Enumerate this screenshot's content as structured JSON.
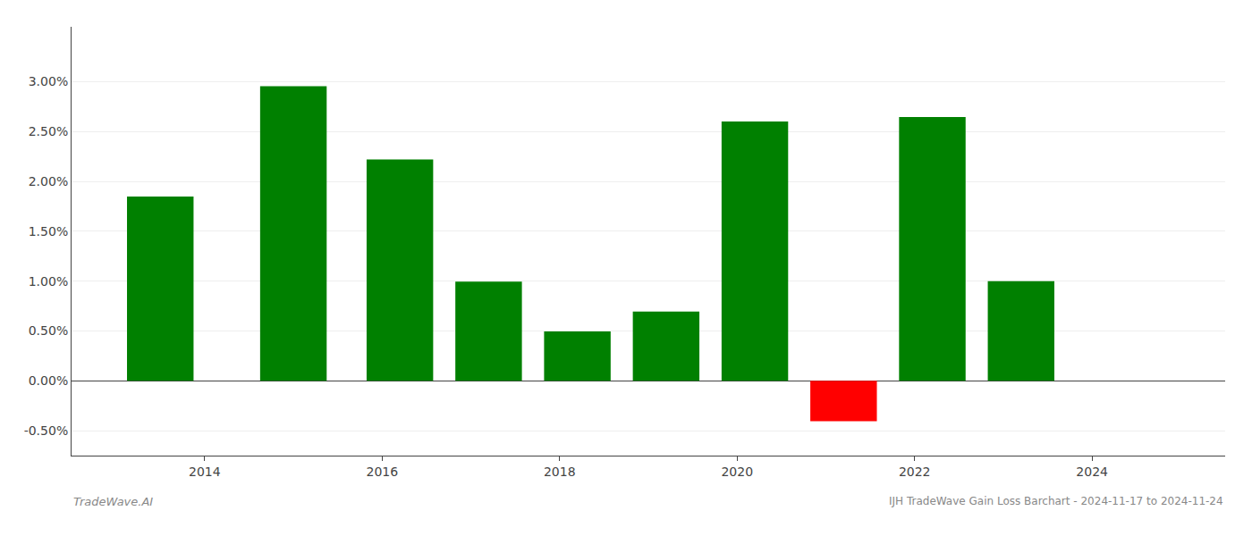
{
  "chart_data": {
    "type": "bar",
    "title": "IJH TradeWave Gain Loss Barchart - 2024-11-17 to 2024-11-24",
    "annotations": [
      "TradeWave.AI"
    ],
    "x": [
      2013.5,
      2015.0,
      2016.2,
      2017.2,
      2018.2,
      2019.2,
      2020.2,
      2021.2,
      2022.2,
      2023.2
    ],
    "values": [
      0.01848,
      0.02955,
      0.0222,
      0.00995,
      0.00495,
      0.00695,
      0.026,
      -0.00405,
      0.02645,
      0.01
    ],
    "colors": [
      "#008000",
      "#008000",
      "#008000",
      "#008000",
      "#008000",
      "#008000",
      "#008000",
      "#ff0000",
      "#008000",
      "#008000"
    ],
    "xlim": [
      2012.5,
      2025.5
    ],
    "xticks": [
      2014,
      2016,
      2018,
      2020,
      2022,
      2024
    ],
    "ylim": [
      -0.0075,
      0.0355
    ],
    "yticks": [
      {
        "value": -0.005,
        "label": "-0.50%"
      },
      {
        "value": 0.0,
        "label": "0.00%"
      },
      {
        "value": 0.005,
        "label": "0.50%"
      },
      {
        "value": 0.01,
        "label": "1.00%"
      },
      {
        "value": 0.015,
        "label": "1.50%"
      },
      {
        "value": 0.02,
        "label": "2.00%"
      },
      {
        "value": 0.025,
        "label": "2.50%"
      },
      {
        "value": 0.03,
        "label": "3.00%"
      }
    ],
    "grid": "y"
  }
}
